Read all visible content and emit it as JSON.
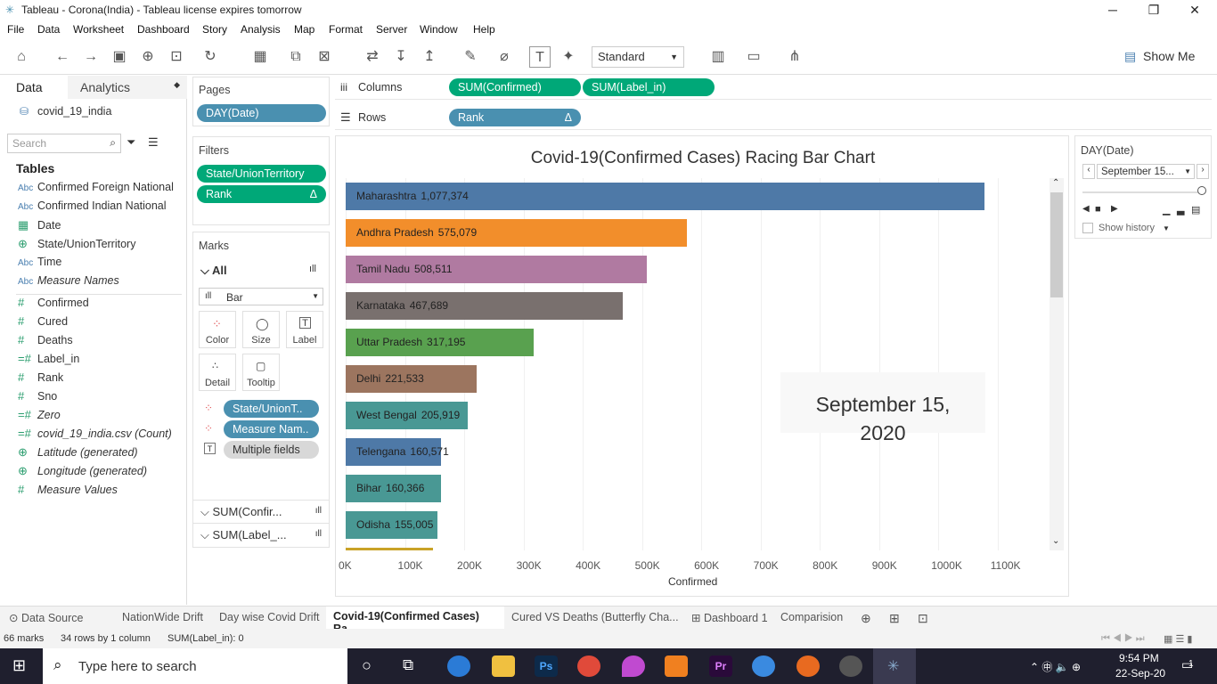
{
  "window": {
    "title": "Tableau - Corona(India) - Tableau license expires tomorrow"
  },
  "menu": [
    "File",
    "Data",
    "Worksheet",
    "Dashboard",
    "Story",
    "Analysis",
    "Map",
    "Format",
    "Server",
    "Window",
    "Help"
  ],
  "toolbar": {
    "fit": "Standard",
    "show_me": "Show Me"
  },
  "data_pane": {
    "tab_data": "Data",
    "tab_analytics": "Analytics",
    "source": "covid_19_india",
    "search_placeholder": "Search",
    "tables_label": "Tables",
    "fields": [
      {
        "type": "Abc",
        "name": "Confirmed Foreign National"
      },
      {
        "type": "Abc",
        "name": "Confirmed Indian National"
      },
      {
        "type": "cal",
        "name": "Date"
      },
      {
        "type": "globe",
        "name": "State/UnionTerritory"
      },
      {
        "type": "Abc",
        "name": "Time"
      },
      {
        "type": "Abc",
        "name": "Measure Names"
      },
      {
        "type": "#",
        "name": "Confirmed"
      },
      {
        "type": "#",
        "name": "Cured"
      },
      {
        "type": "#",
        "name": "Deaths"
      },
      {
        "type": "=#",
        "name": "Label_in"
      },
      {
        "type": "#",
        "name": "Rank"
      },
      {
        "type": "#",
        "name": "Sno"
      },
      {
        "type": "=#",
        "name": "Zero"
      },
      {
        "type": "=#",
        "name": "covid_19_india.csv (Count)"
      },
      {
        "type": "globe",
        "name": "Latitude (generated)"
      },
      {
        "type": "globe",
        "name": "Longitude (generated)"
      },
      {
        "type": "#",
        "name": "Measure Values"
      }
    ]
  },
  "pages": {
    "title": "Pages",
    "pill": "DAY(Date)"
  },
  "filters": {
    "title": "Filters",
    "pills": [
      "State/UnionTerritory",
      "Rank"
    ],
    "delta": "Δ"
  },
  "marks": {
    "title": "Marks",
    "all": "All",
    "type": "Bar",
    "buttons": [
      "Color",
      "Size",
      "Label",
      "Detail",
      "Tooltip"
    ],
    "pills": [
      "State/UnionT..",
      "Measure Nam..",
      "Multiple fields"
    ],
    "sections": [
      "SUM(Confir...",
      "SUM(Label_..."
    ]
  },
  "shelves": {
    "columns_label": "Columns",
    "rows_label": "Rows",
    "columns": [
      "SUM(Confirmed)",
      "SUM(Label_in)"
    ],
    "rows": [
      "Rank"
    ],
    "delta": "Δ"
  },
  "page_control": {
    "title": "DAY(Date)",
    "value": "September 15...",
    "show_history": "Show history"
  },
  "chart_data": {
    "type": "bar",
    "title": "Covid-19(Confirmed Cases) Racing Bar Chart",
    "xlabel": "Confirmed",
    "xlim": [
      0,
      1150000
    ],
    "ticks": [
      "0K",
      "100K",
      "200K",
      "300K",
      "400K",
      "500K",
      "600K",
      "700K",
      "800K",
      "900K",
      "1000K",
      "1100K"
    ],
    "annotation": "September 15, 2020",
    "series": [
      {
        "name": "Maharashtra",
        "value": 1077374,
        "label": "1,077,374",
        "color": "#4e79a7"
      },
      {
        "name": "Andhra Pradesh",
        "value": 575079,
        "label": "575,079",
        "color": "#f28e2b"
      },
      {
        "name": "Tamil Nadu",
        "value": 508511,
        "label": "508,511",
        "color": "#b07aa1"
      },
      {
        "name": "Karnataka",
        "value": 467689,
        "label": "467,689",
        "color": "#79706e"
      },
      {
        "name": "Uttar Pradesh",
        "value": 317195,
        "label": "317,195",
        "color": "#59a14f"
      },
      {
        "name": "Delhi",
        "value": 221533,
        "label": "221,533",
        "color": "#9c755f"
      },
      {
        "name": "West Bengal",
        "value": 205919,
        "label": "205,919",
        "color": "#499894"
      },
      {
        "name": "Telengana",
        "value": 160571,
        "label": "160,571",
        "color": "#4e79a7"
      },
      {
        "name": "Bihar",
        "value": 160366,
        "label": "160,366",
        "color": "#499894"
      },
      {
        "name": "Odisha",
        "value": 155005,
        "label": "155,005",
        "color": "#499894"
      }
    ]
  },
  "sheet_tabs": [
    "Data Source",
    "NationWide Drift",
    "Day wise Covid Drift",
    "Covid-19(Confirmed Cases) Ra...",
    "Cured VS Deaths (Butterfly Cha...",
    "Dashboard 1",
    "Comparision"
  ],
  "status": {
    "marks": "66 marks",
    "rows": "34 rows by 1 column",
    "sum": "SUM(Label_in): 0"
  },
  "taskbar": {
    "search": "Type here to search",
    "time": "9:54 PM",
    "date": "22-Sep-20",
    "notif": "1"
  }
}
